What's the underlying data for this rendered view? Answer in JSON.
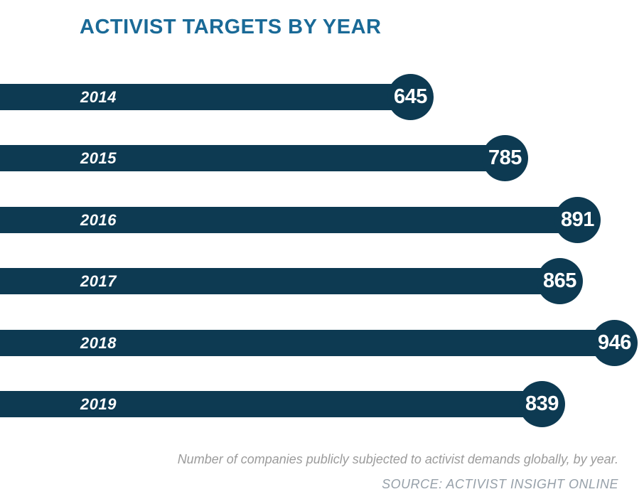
{
  "title": "ACTIVIST TARGETS BY YEAR",
  "footer": {
    "caption": "Number of companies publicly subjected to activist demands globally, by year.",
    "source": "SOURCE: ACTIVIST INSIGHT ONLINE"
  },
  "colors": {
    "bar": "#0d3a52",
    "title_text": "#1a6a97",
    "value_text": "#ffffff",
    "caption_text": "#9b9b9b",
    "source_text": "#96a0a9",
    "background": "#ffffff"
  },
  "chart_data": {
    "type": "bar",
    "orientation": "horizontal",
    "title": "ACTIVIST TARGETS BY YEAR",
    "xlabel": "",
    "ylabel": "",
    "categories": [
      "2014",
      "2015",
      "2016",
      "2017",
      "2018",
      "2019"
    ],
    "values": [
      645,
      785,
      891,
      865,
      946,
      839
    ],
    "value_labels_shown": true,
    "value_label_style": "circle-at-bar-end",
    "xlim": [
      0,
      1000
    ],
    "grid": false,
    "legend": "none"
  }
}
